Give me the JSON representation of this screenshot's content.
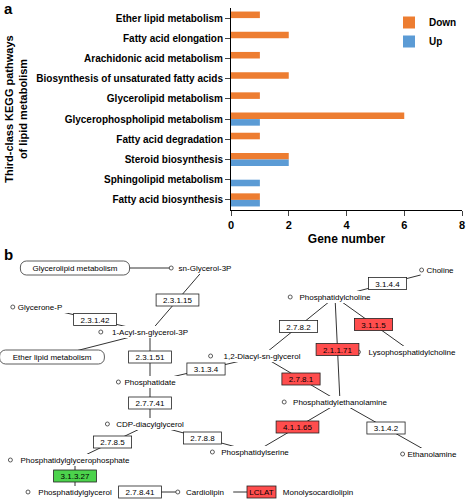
{
  "chart_data": {
    "type": "bar",
    "orientation": "horizontal",
    "panel_label": "a",
    "categories": [
      "Ether lipid metabolism",
      "Fatty acid elongation",
      "Arachidonic acid metabolism",
      "Biosynthesis of unsaturated fatty acids",
      "Glycerolipid metabolism",
      "Glycerophospholipid metabolism",
      "Fatty acid degradation",
      "Steroid biosynthesis",
      "Sphingolipid metabolism",
      "Fatty acid biosynthesis"
    ],
    "series": [
      {
        "name": "Down",
        "color": "#ed7d31",
        "values": [
          1,
          2,
          1,
          2,
          1,
          6,
          1,
          2,
          0,
          1
        ]
      },
      {
        "name": "Up",
        "color": "#5b9bd5",
        "values": [
          0,
          0,
          0,
          0,
          0,
          1,
          0,
          2,
          1,
          1
        ]
      }
    ],
    "xlabel": "Gene number",
    "ylabel": [
      "Third-class KEGG pathways",
      "of lipid metabolism"
    ],
    "xlim": [
      0,
      8
    ],
    "xticks": [
      0,
      2,
      4,
      6,
      8
    ],
    "legend": "top right",
    "grid": false
  },
  "diagram": {
    "panel_label": "b",
    "compounds": [
      {
        "label": "Glycerolipid metabolism",
        "kind": "pathway"
      },
      {
        "label": "sn-Glycerol-3P",
        "kind": "compound"
      },
      {
        "label": "Glycerone-P",
        "kind": "compound"
      },
      {
        "label": "1-Acyl-sn-glycerol-3P",
        "kind": "compound"
      },
      {
        "label": "Phosphatidate",
        "kind": "compound"
      },
      {
        "label": "CDP-diacylglycerol",
        "kind": "compound"
      },
      {
        "label": "Phosphatidylglycerophosphate",
        "kind": "compound"
      },
      {
        "label": "Phosphatidylglycerol",
        "kind": "compound"
      },
      {
        "label": "Cardiolipin",
        "kind": "compound"
      },
      {
        "label": "1,2-Diacyl-sn-glycerol",
        "kind": "compound"
      },
      {
        "label": "Phosphatidylcholine",
        "kind": "compound"
      },
      {
        "label": "Phosphatidylethanolamine",
        "kind": "compound"
      },
      {
        "label": "Phosphatidylserine",
        "kind": "compound"
      },
      {
        "label": "Choline",
        "kind": "compound"
      },
      {
        "label": "Ethanolamine",
        "kind": "compound"
      },
      {
        "label": "Ether lipid metabolism",
        "kind": "pathway"
      },
      {
        "label": "Lysophosphatidylcholine",
        "kind": "compound"
      },
      {
        "label": "Monolysocardiolipin",
        "kind": "compound"
      }
    ],
    "enzymes": [
      {
        "label": "2.3.1.15",
        "color": "none"
      },
      {
        "label": "2.3.1.42",
        "color": "none"
      },
      {
        "label": "2.3.1.51",
        "color": "none"
      },
      {
        "label": "2.7.7.41",
        "color": "none"
      },
      {
        "label": "2.7.8.5",
        "color": "none"
      },
      {
        "label": "3.1.3.27",
        "color": "green"
      },
      {
        "label": "2.7.8.41",
        "color": "none"
      },
      {
        "label": "3.1.3.4",
        "color": "none"
      },
      {
        "label": "2.7.8.2",
        "color": "none"
      },
      {
        "label": "2.7.8.1",
        "color": "red"
      },
      {
        "label": "2.1.1.71",
        "color": "red"
      },
      {
        "label": "2.7.8.8",
        "color": "none"
      },
      {
        "label": "4.1.1.65",
        "color": "red"
      },
      {
        "label": "3.1.4.4",
        "color": "none"
      },
      {
        "label": "3.1.1.5",
        "color": "red"
      },
      {
        "label": "LCLAT",
        "color": "red"
      },
      {
        "label": "3.1.4.2",
        "color": "none"
      }
    ]
  }
}
